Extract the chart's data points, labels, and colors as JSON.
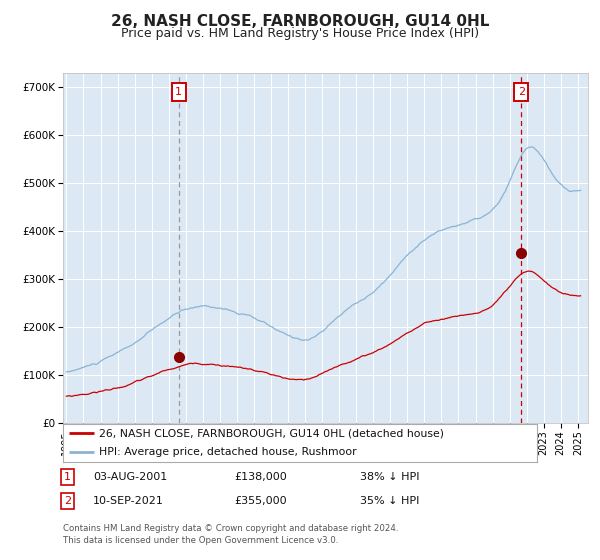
{
  "title": "26, NASH CLOSE, FARNBOROUGH, GU14 0HL",
  "subtitle": "Price paid vs. HM Land Registry's House Price Index (HPI)",
  "legend_line1": "26, NASH CLOSE, FARNBOROUGH, GU14 0HL (detached house)",
  "legend_line2": "HPI: Average price, detached house, Rushmoor",
  "sale1_date": "03-AUG-2001",
  "sale1_price": "£138,000",
  "sale1_hpi": "38% ↓ HPI",
  "sale1_year": 2001.58,
  "sale1_value": 138000,
  "sale2_date": "10-SEP-2021",
  "sale2_price": "£355,000",
  "sale2_hpi": "35% ↓ HPI",
  "sale2_year": 2021.69,
  "sale2_value": 355000,
  "ylabel_ticks": [
    "£0",
    "£100K",
    "£200K",
    "£300K",
    "£400K",
    "£500K",
    "£600K",
    "£700K"
  ],
  "ytick_vals": [
    0,
    100000,
    200000,
    300000,
    400000,
    500000,
    600000,
    700000
  ],
  "hpi_color": "#8ab4d4",
  "price_color": "#cc0000",
  "plot_bg": "#dce9f5",
  "footer": "Contains HM Land Registry data © Crown copyright and database right 2024.\nThis data is licensed under the Open Government Licence v3.0."
}
